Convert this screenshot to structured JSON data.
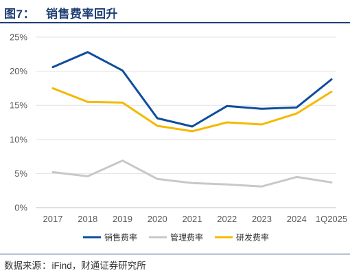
{
  "header": {
    "figure_label": "图7：",
    "title": "销售费率回升"
  },
  "footer": {
    "source_prefix": "数据来源",
    "source_colon": "：",
    "source_text": "iFind，财通证券研究所"
  },
  "colors": {
    "title": "#1f3f73",
    "rule": "#1f3f73"
  },
  "chart_data": {
    "type": "line",
    "title": "",
    "xlabel": "",
    "ylabel": "",
    "categories": [
      "2017",
      "2018",
      "2019",
      "2020",
      "2021",
      "2022",
      "2023",
      "2024",
      "1Q2025"
    ],
    "ylim": [
      0,
      25
    ],
    "ytick_labels": [
      "0%",
      "5%",
      "10%",
      "15%",
      "20%",
      "25%"
    ],
    "grid": "horizontal",
    "legend_position": "bottom",
    "series": [
      {
        "name": "销售费率",
        "color": "#0e4d9c",
        "values": [
          20.6,
          22.8,
          20.1,
          13.1,
          11.9,
          14.9,
          14.5,
          14.7,
          18.8
        ]
      },
      {
        "name": "管理费率",
        "color": "#c8c8c8",
        "values": [
          5.2,
          4.6,
          6.9,
          4.2,
          3.6,
          3.4,
          3.1,
          4.5,
          3.7
        ]
      },
      {
        "name": "研发费率",
        "color": "#f5b800",
        "values": [
          17.5,
          15.5,
          15.4,
          12.0,
          11.2,
          12.5,
          12.2,
          13.8,
          17.0
        ]
      }
    ]
  }
}
